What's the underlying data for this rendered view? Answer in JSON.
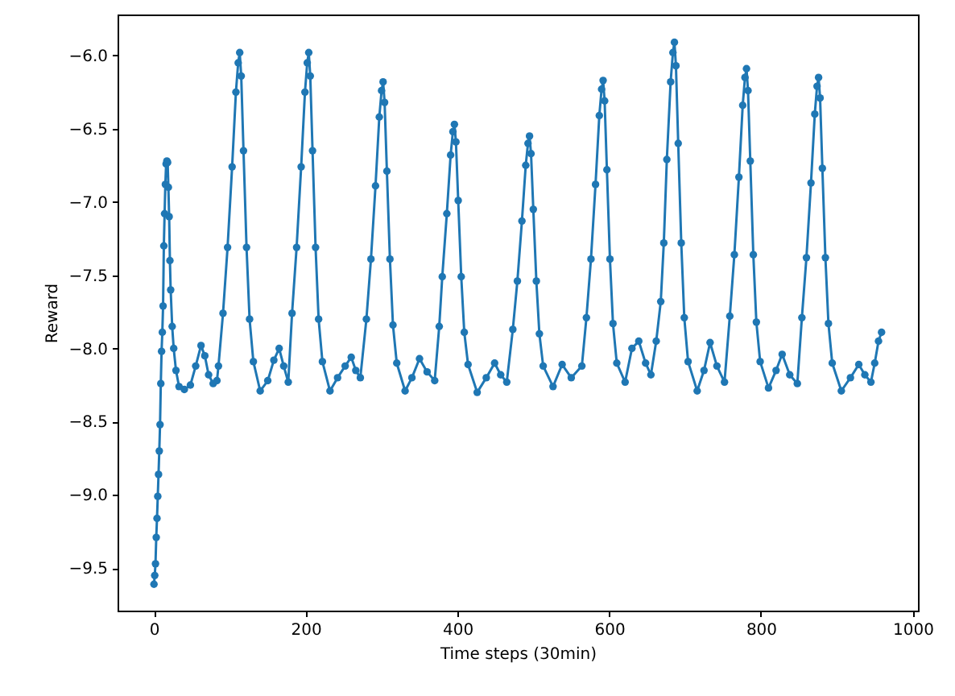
{
  "chart_data": {
    "type": "line",
    "xlabel": "Time steps (30min)",
    "ylabel": "Reward",
    "marker": "circle",
    "grid": false,
    "xlim": [
      -48,
      1007
    ],
    "ylim": [
      -9.79,
      -5.72
    ],
    "xticks": [
      0,
      200,
      400,
      600,
      800,
      1000
    ],
    "yticks": [
      -9.5,
      {
        "value": -9,
        "label": "−9.0"
      },
      -8.5,
      {
        "value": -8,
        "label": "−8.0"
      },
      -7.5,
      {
        "value": -7,
        "label": "−7.0"
      },
      -6.5,
      {
        "value": -6,
        "label": "−6.0"
      }
    ],
    "x": [
      0,
      1,
      2,
      3,
      4,
      5,
      6,
      7,
      8,
      9,
      10,
      11,
      12,
      13,
      14,
      15,
      16,
      17,
      18,
      19,
      20,
      21,
      22,
      24,
      26,
      29,
      33,
      40,
      48,
      55,
      62,
      67,
      72,
      78,
      83,
      85,
      91,
      97,
      103,
      108,
      111,
      113,
      115,
      118,
      122,
      126,
      131,
      140,
      150,
      158,
      165,
      171,
      177,
      182,
      188,
      194,
      199,
      202,
      204,
      206,
      209,
      213,
      217,
      222,
      232,
      242,
      252,
      260,
      266,
      272,
      280,
      286,
      292,
      297,
      300,
      302,
      304,
      307,
      311,
      315,
      320,
      331,
      340,
      350,
      360,
      370,
      376,
      380,
      386,
      391,
      394,
      396,
      398,
      401,
      405,
      409,
      414,
      426,
      438,
      449,
      457,
      465,
      473,
      479,
      485,
      490,
      493,
      495,
      497,
      500,
      504,
      508,
      513,
      526,
      538,
      550,
      564,
      570,
      576,
      582,
      587,
      590,
      592,
      594,
      597,
      601,
      605,
      610,
      621,
      630,
      639,
      648,
      655,
      662,
      668,
      672,
      676,
      681,
      684,
      686,
      688,
      691,
      695,
      699,
      704,
      716,
      725,
      733,
      742,
      752,
      759,
      765,
      771,
      776,
      779,
      781,
      783,
      786,
      790,
      794,
      799,
      810,
      820,
      828,
      838,
      848,
      854,
      860,
      866,
      871,
      874,
      876,
      878,
      881,
      885,
      889,
      894,
      906,
      918,
      929,
      937,
      945,
      950,
      955,
      959
    ],
    "series": [
      {
        "color": "#1f77b4",
        "values": [
          -9.61,
          -9.55,
          -9.47,
          -9.29,
          -9.16,
          -9.01,
          -8.86,
          -8.7,
          -8.52,
          -8.24,
          -8.02,
          -7.89,
          -7.71,
          -7.3,
          -7.08,
          -6.88,
          -6.74,
          -6.72,
          -6.73,
          -6.9,
          -7.1,
          -7.4,
          -7.6,
          -7.85,
          -8.0,
          -8.15,
          -8.26,
          -8.28,
          -8.25,
          -8.12,
          -7.98,
          -8.05,
          -8.18,
          -8.24,
          -8.22,
          -8.12,
          -7.76,
          -7.31,
          -6.76,
          -6.25,
          -6.05,
          -5.98,
          -6.14,
          -6.65,
          -7.31,
          -7.8,
          -8.09,
          -8.29,
          -8.22,
          -8.08,
          -8.0,
          -8.12,
          -8.23,
          -7.76,
          -7.31,
          -6.76,
          -6.25,
          -6.05,
          -5.98,
          -6.14,
          -6.65,
          -7.31,
          -7.8,
          -8.09,
          -8.29,
          -8.2,
          -8.12,
          -8.06,
          -8.15,
          -8.2,
          -7.8,
          -7.39,
          -6.89,
          -6.42,
          -6.24,
          -6.18,
          -6.32,
          -6.79,
          -7.39,
          -7.84,
          -8.1,
          -8.29,
          -8.2,
          -8.07,
          -8.16,
          -8.22,
          -7.85,
          -7.51,
          -7.08,
          -6.68,
          -6.52,
          -6.47,
          -6.59,
          -6.99,
          -7.51,
          -7.89,
          -8.11,
          -8.3,
          -8.2,
          -8.1,
          -8.18,
          -8.23,
          -7.87,
          -7.54,
          -7.13,
          -6.75,
          -6.6,
          -6.55,
          -6.67,
          -7.05,
          -7.54,
          -7.9,
          -8.12,
          -8.26,
          -8.11,
          -8.2,
          -8.12,
          -7.79,
          -7.39,
          -6.88,
          -6.41,
          -6.23,
          -6.17,
          -6.31,
          -6.78,
          -7.39,
          -7.83,
          -8.1,
          -8.23,
          -8.0,
          -7.95,
          -8.1,
          -8.18,
          -7.95,
          -7.68,
          -7.28,
          -6.71,
          -6.18,
          -5.98,
          -5.91,
          -6.07,
          -6.6,
          -7.28,
          -7.79,
          -8.09,
          -8.29,
          -8.15,
          -7.96,
          -8.12,
          -8.23,
          -7.78,
          -7.36,
          -6.83,
          -6.34,
          -6.15,
          -6.09,
          -6.24,
          -6.72,
          -7.36,
          -7.82,
          -8.09,
          -8.27,
          -8.15,
          -8.04,
          -8.18,
          -8.24,
          -7.79,
          -7.38,
          -6.87,
          -6.4,
          -6.21,
          -6.15,
          -6.29,
          -6.77,
          -7.38,
          -7.83,
          -8.1,
          -8.29,
          -8.2,
          -8.11,
          -8.18,
          -8.23,
          -8.1,
          -7.95,
          -7.89
        ]
      }
    ]
  }
}
